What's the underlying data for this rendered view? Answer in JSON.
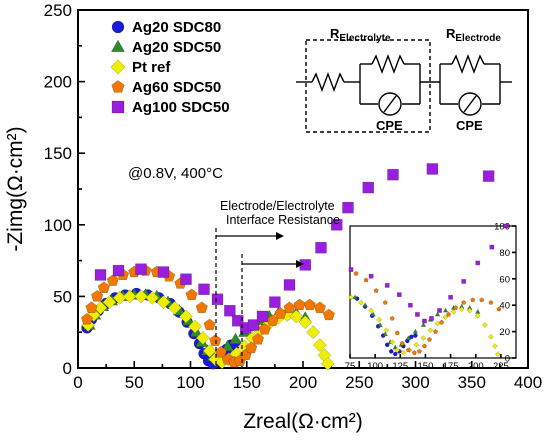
{
  "chart_data": {
    "type": "scatter",
    "xlabel": "Zreal(Ω·cm²)",
    "ylabel": "-Zimg(Ω·cm²)",
    "xlim": [
      0,
      400
    ],
    "ylim": [
      0,
      250
    ],
    "xticks": [
      0,
      50,
      100,
      150,
      200,
      250,
      300,
      350,
      400
    ],
    "yticks": [
      0,
      50,
      100,
      150,
      200,
      250
    ],
    "legend_position": "top-left",
    "annotations": {
      "condition": "@0.8V, 400°C",
      "interface_label_line1": "Electrode/Electrolyte",
      "interface_label_line2": "Interface Resistance"
    },
    "circuit": {
      "label1_main": "R",
      "label1_sub": "Electrolyte",
      "label2_main": "R",
      "label2_sub": "Electrode",
      "cpe1": "CPE",
      "cpe2": "CPE"
    },
    "series": [
      {
        "name": "Ag20 SDC80",
        "color": "#1a1adc",
        "marker": "circle",
        "points": [
          [
            8,
            28
          ],
          [
            12,
            34
          ],
          [
            18,
            40
          ],
          [
            25,
            45
          ],
          [
            33,
            49
          ],
          [
            42,
            51
          ],
          [
            52,
            52
          ],
          [
            62,
            51
          ],
          [
            72,
            49
          ],
          [
            82,
            45
          ],
          [
            90,
            39
          ],
          [
            97,
            32
          ],
          [
            103,
            24
          ],
          [
            108,
            17
          ],
          [
            112,
            10
          ],
          [
            116,
            5
          ],
          [
            120,
            3
          ],
          [
            124,
            5
          ],
          [
            128,
            9
          ],
          [
            132,
            13
          ],
          [
            136,
            16
          ],
          [
            140,
            17
          ]
        ]
      },
      {
        "name": "Ag20 SDC50",
        "color": "#2e8b2e",
        "marker": "triangle",
        "points": [
          [
            10,
            30
          ],
          [
            15,
            37
          ],
          [
            22,
            43
          ],
          [
            30,
            47
          ],
          [
            40,
            50
          ],
          [
            50,
            51
          ],
          [
            60,
            51
          ],
          [
            70,
            50
          ],
          [
            80,
            46
          ],
          [
            90,
            40
          ],
          [
            98,
            33
          ],
          [
            105,
            25
          ],
          [
            110,
            18
          ],
          [
            115,
            12
          ],
          [
            120,
            8
          ],
          [
            126,
            10
          ],
          [
            133,
            15
          ],
          [
            140,
            20
          ],
          [
            148,
            25
          ],
          [
            155,
            29
          ],
          [
            162,
            33
          ],
          [
            170,
            36
          ],
          [
            178,
            38
          ],
          [
            186,
            39
          ],
          [
            194,
            38
          ],
          [
            202,
            35
          ]
        ]
      },
      {
        "name": "Pt ref",
        "color": "#f0ee00",
        "marker": "diamond",
        "points": [
          [
            9,
            30
          ],
          [
            14,
            37
          ],
          [
            20,
            42
          ],
          [
            28,
            46
          ],
          [
            37,
            49
          ],
          [
            46,
            50
          ],
          [
            56,
            50
          ],
          [
            66,
            49
          ],
          [
            76,
            46
          ],
          [
            86,
            42
          ],
          [
            96,
            36
          ],
          [
            104,
            29
          ],
          [
            111,
            21
          ],
          [
            117,
            12
          ],
          [
            122,
            6
          ],
          [
            128,
            4
          ],
          [
            134,
            6
          ],
          [
            141,
            10
          ],
          [
            148,
            15
          ],
          [
            155,
            21
          ],
          [
            162,
            26
          ],
          [
            170,
            31
          ],
          [
            178,
            35
          ],
          [
            186,
            37
          ],
          [
            194,
            36
          ],
          [
            202,
            32
          ],
          [
            209,
            25
          ],
          [
            215,
            16
          ],
          [
            219,
            9
          ],
          [
            222,
            3
          ]
        ]
      },
      {
        "name": "Ag60 SDC50",
        "color": "#f07800",
        "marker": "pentagon",
        "points": [
          [
            8,
            34
          ],
          [
            12,
            42
          ],
          [
            17,
            50
          ],
          [
            23,
            56
          ],
          [
            31,
            61
          ],
          [
            40,
            65
          ],
          [
            50,
            67
          ],
          [
            60,
            68
          ],
          [
            70,
            67
          ],
          [
            81,
            64
          ],
          [
            91,
            59
          ],
          [
            101,
            51
          ],
          [
            110,
            42
          ],
          [
            117,
            30
          ],
          [
            122,
            19
          ],
          [
            127,
            11
          ],
          [
            133,
            6
          ],
          [
            139,
            4
          ],
          [
            144,
            5
          ],
          [
            149,
            9
          ],
          [
            154,
            14
          ],
          [
            160,
            20
          ],
          [
            166,
            27
          ],
          [
            173,
            33
          ],
          [
            180,
            38
          ],
          [
            188,
            42
          ],
          [
            197,
            44
          ],
          [
            206,
            44
          ],
          [
            215,
            42
          ],
          [
            223,
            37
          ]
        ]
      },
      {
        "name": "Ag100 SDC50",
        "color": "#9a1ee0",
        "marker": "square",
        "points": [
          [
            20,
            65
          ],
          [
            36,
            68
          ],
          [
            56,
            69
          ],
          [
            76,
            67
          ],
          [
            96,
            62
          ],
          [
            112,
            55
          ],
          [
            124,
            48
          ],
          [
            135,
            40
          ],
          [
            142,
            33
          ],
          [
            149,
            28
          ],
          [
            156,
            30
          ],
          [
            164,
            36
          ],
          [
            175,
            46
          ],
          [
            188,
            58
          ],
          [
            202,
            72
          ],
          [
            216,
            84
          ],
          [
            230,
            100
          ],
          [
            240,
            112
          ],
          [
            258,
            126
          ],
          [
            280,
            135
          ],
          [
            315,
            139
          ],
          [
            365,
            134
          ]
        ]
      }
    ]
  }
}
